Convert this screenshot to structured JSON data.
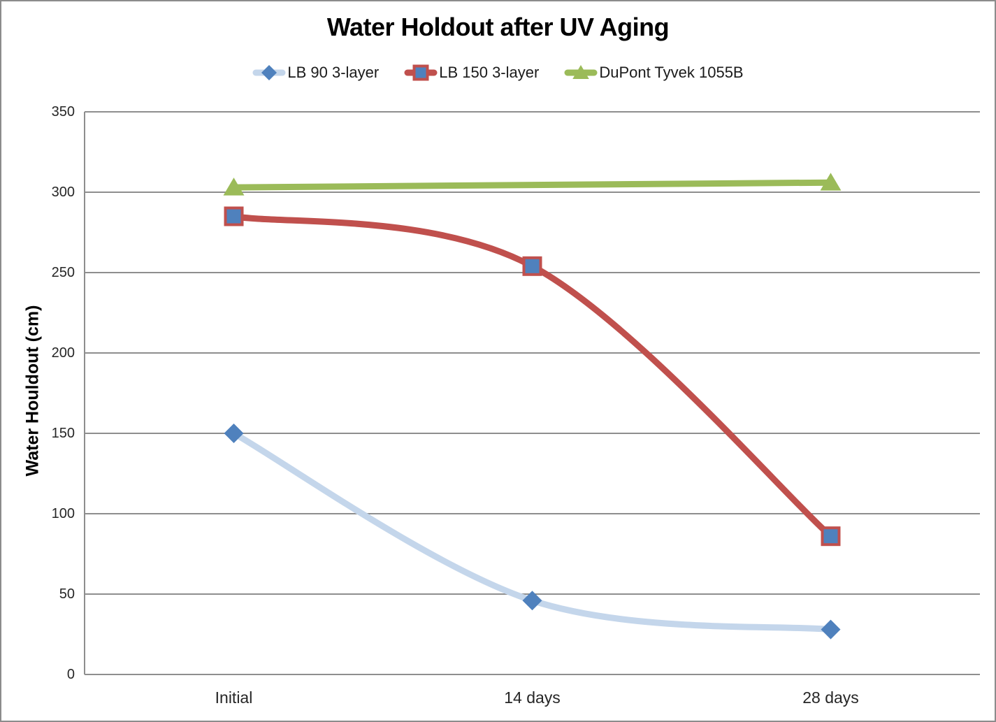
{
  "colors": {
    "background": "#FFFFFF",
    "frame_border": "#8C8C8C",
    "gridline": "#8E8E8E",
    "axis_line": "#8E8E8E",
    "title_text": "#000000",
    "tick_text": "#262626",
    "blue_marker": "#4F81BD",
    "light_blue_line": "#C4D6EB",
    "red": "#C0504D",
    "green": "#9BBB59"
  },
  "chart_data": {
    "type": "line",
    "title": "Water Holdout after UV Aging",
    "xlabel": "",
    "ylabel": "Water Houldout (cm)",
    "categories": [
      "Initial",
      "14 days",
      "28 days"
    ],
    "ylim": [
      0,
      350
    ],
    "ytick_step": 50,
    "yticks": [
      0,
      50,
      100,
      150,
      200,
      250,
      300,
      350
    ],
    "grid": true,
    "legend_position": "top-center",
    "series": [
      {
        "key": "lb-90-3-layer",
        "name": "LB 90 3-layer",
        "values": [
          150,
          46,
          28
        ],
        "smooth": true,
        "line_color": "#C4D6EB",
        "line_width": 9,
        "marker": "diamond",
        "marker_fill": "#4F81BD",
        "marker_border": null,
        "marker_size": 14
      },
      {
        "key": "lb-150-3-layer",
        "name": "LB 150 3-layer",
        "values": [
          285,
          254,
          86
        ],
        "smooth": true,
        "line_color": "#C0504D",
        "line_width": 9,
        "marker": "square",
        "marker_fill": "#4F81BD",
        "marker_border": "#C0504D",
        "marker_size": 12
      },
      {
        "key": "dupont-tyvek-1055b",
        "name": "DuPont Tyvek 1055B",
        "values": [
          303,
          null,
          306
        ],
        "smooth": false,
        "line_color": "#9BBB59",
        "line_width": 9,
        "marker": "triangle",
        "marker_fill": "#9BBB59",
        "marker_border": null,
        "marker_size": 14
      }
    ]
  }
}
